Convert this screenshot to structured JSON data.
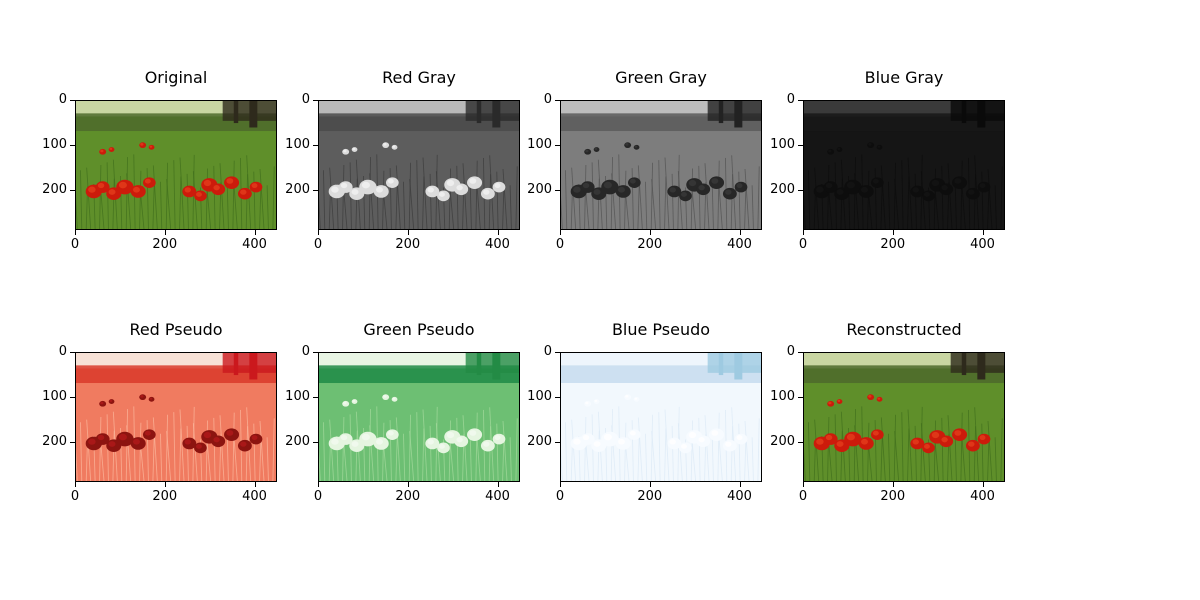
{
  "figure": {
    "panels": [
      {
        "title": "Original",
        "type": "color",
        "yticks": [
          "0",
          "100",
          "200"
        ],
        "xticks": [
          "0",
          "200",
          "400"
        ]
      },
      {
        "title": "Red Gray",
        "type": "gray-red",
        "yticks": [
          "0",
          "100",
          "200"
        ],
        "xticks": [
          "0",
          "200",
          "400"
        ]
      },
      {
        "title": "Green Gray",
        "type": "gray-green",
        "yticks": [
          "0",
          "100",
          "200"
        ],
        "xticks": [
          "0",
          "200",
          "400"
        ]
      },
      {
        "title": "Blue Gray",
        "type": "gray-blue",
        "yticks": [
          "0",
          "100",
          "200"
        ],
        "xticks": [
          "0",
          "200",
          "400"
        ]
      },
      {
        "title": "Red Pseudo",
        "type": "pseudo-red",
        "yticks": [
          "0",
          "100",
          "200"
        ],
        "xticks": [
          "0",
          "200",
          "400"
        ]
      },
      {
        "title": "Green Pseudo",
        "type": "pseudo-green",
        "yticks": [
          "0",
          "100",
          "200"
        ],
        "xticks": [
          "0",
          "200",
          "400"
        ]
      },
      {
        "title": "Blue Pseudo",
        "type": "pseudo-blue",
        "yticks": [
          "0",
          "100",
          "200"
        ],
        "xticks": [
          "0",
          "200",
          "400"
        ]
      },
      {
        "title": "Reconstructed",
        "type": "color",
        "yticks": [
          "0",
          "100",
          "200"
        ],
        "xticks": [
          "0",
          "200",
          "400"
        ]
      }
    ]
  }
}
